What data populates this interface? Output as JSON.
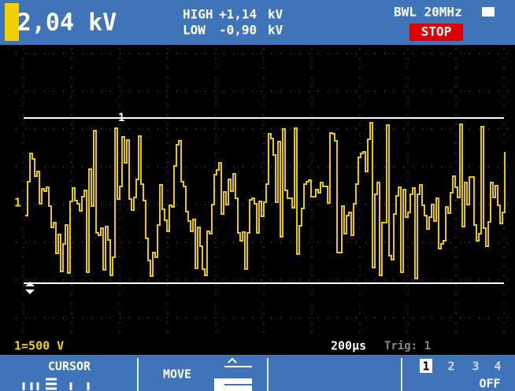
{
  "header": {
    "reading": "2,04 kV",
    "high_label": "HIGH",
    "high_value": "+1,14",
    "high_unit": "kV",
    "low_label": "LOW",
    "low_value": "-0,90",
    "low_unit": "kV",
    "bandwidth": "BWL 20MHz",
    "status": "STOP"
  },
  "screen": {
    "channel_marker": "1",
    "cursor_marker": "1"
  },
  "footer": {
    "scale": "1=500 V",
    "timebase": "200µs",
    "trigger": "Trig: 1"
  },
  "menu": {
    "cursor": "CURSOR",
    "move": "MOVE",
    "channels": [
      "1",
      "2",
      "3",
      "4"
    ],
    "off": "OFF"
  }
}
